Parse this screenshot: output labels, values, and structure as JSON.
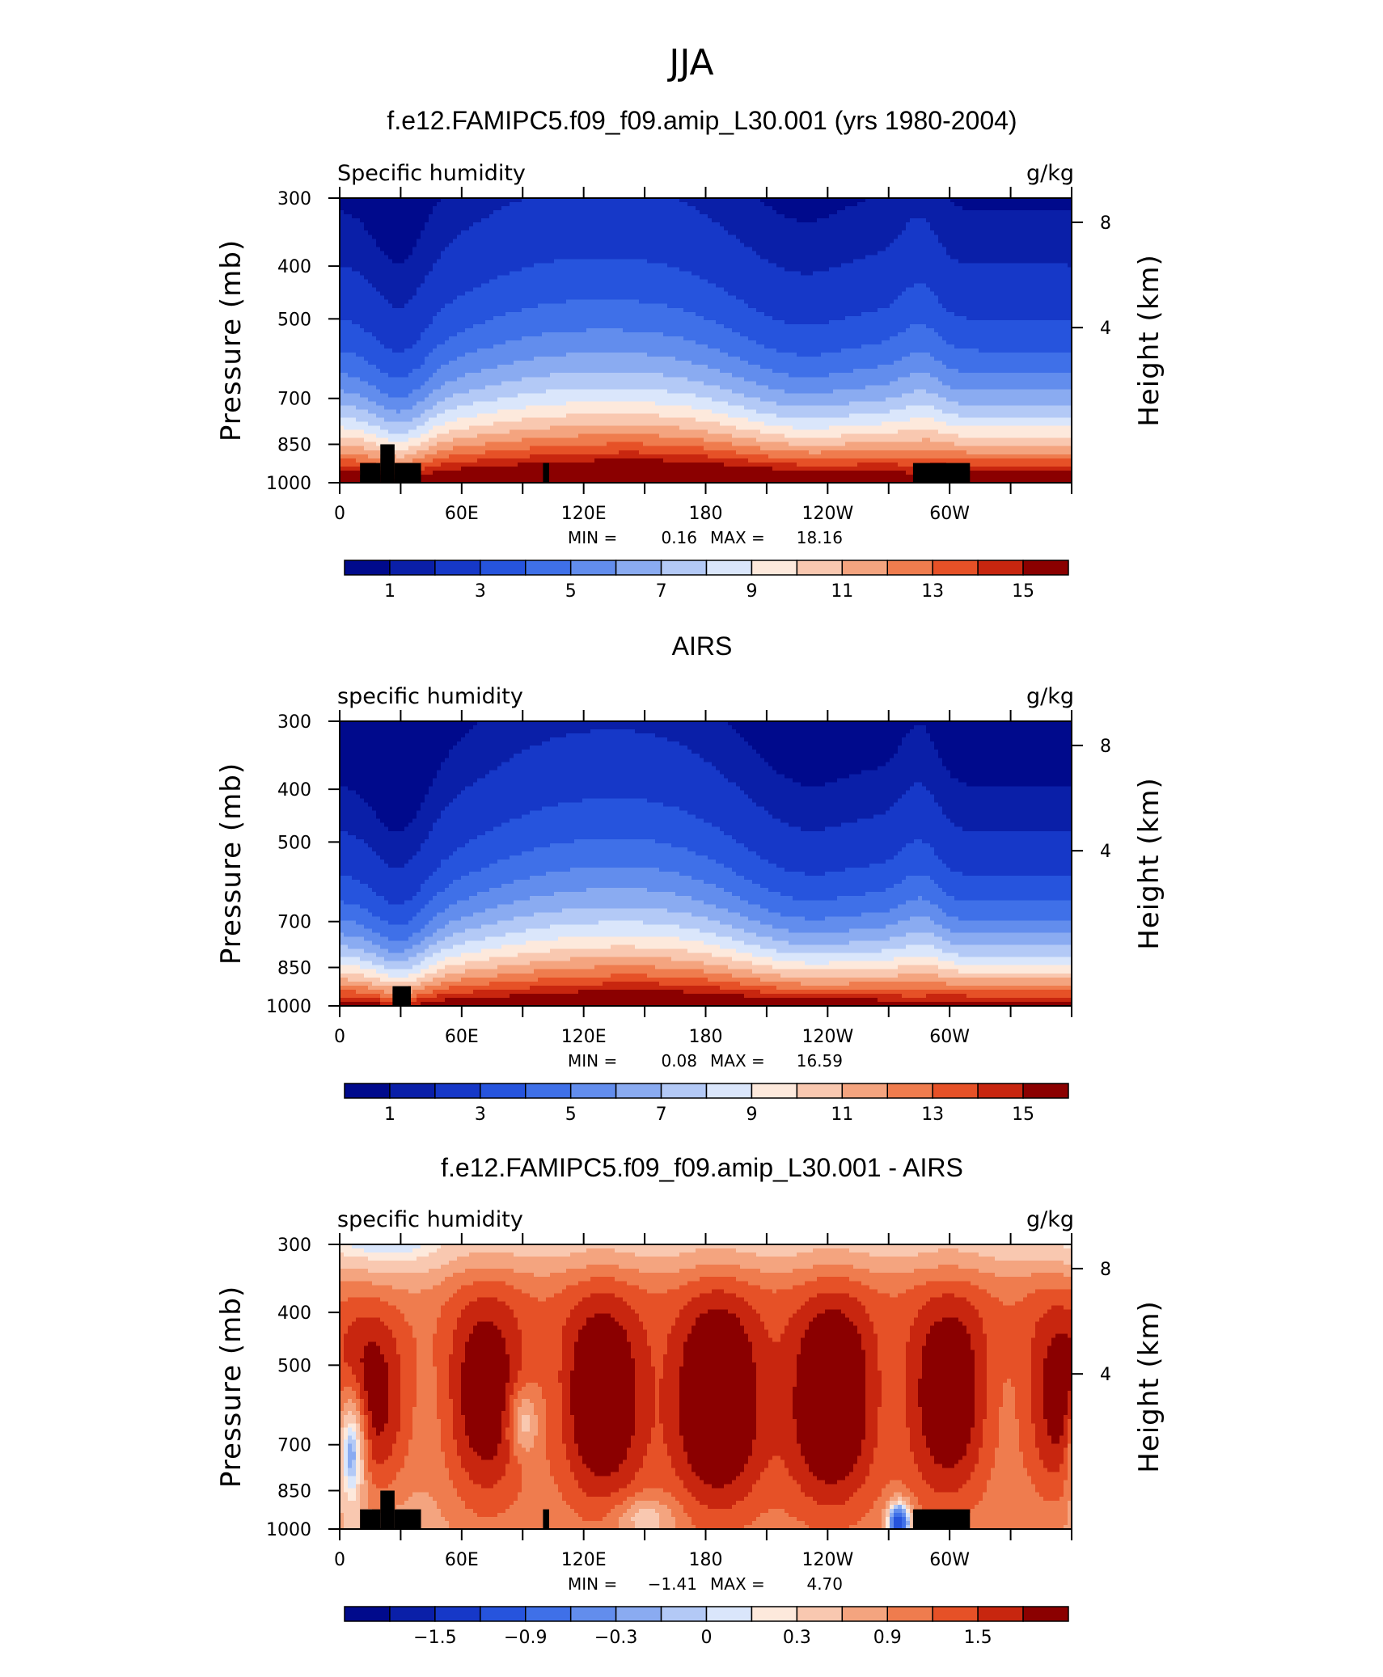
{
  "title": "JJA",
  "chart_data": [
    {
      "type": "heatmap",
      "title": "f.e12.FAMIPC5.f09_f09.amip_L30.001 (yrs 1980-2004)",
      "left_label": "Specific humidity",
      "units": "g/kg",
      "ylabel": "Pressure (mb)",
      "ylabel_right": "Height (km)",
      "y_ticks": [
        "300",
        "400",
        "500",
        "700",
        "850",
        "1000"
      ],
      "y_right_ticks": [
        "8",
        "4"
      ],
      "x_ticks": [
        "0",
        "60E",
        "120E",
        "180",
        "120W",
        "60W"
      ],
      "min_label": "MIN =",
      "min_value": "0.16",
      "max_label": "MAX =",
      "max_value": "18.16",
      "colorbar_ticks": [
        "1",
        "3",
        "5",
        "7",
        "9",
        "11",
        "13",
        "15"
      ],
      "field": "model",
      "colors": [
        "#000a8c",
        "#0a1fa8",
        "#1638c8",
        "#2654dd",
        "#3f70e8",
        "#628ded",
        "#8aabf1",
        "#b3c9f6",
        "#dae6fb",
        "#fde9dc",
        "#f9c8b0",
        "#f4a47f",
        "#ef7c4e",
        "#e65127",
        "#c8260f",
        "#8b0000"
      ]
    },
    {
      "type": "heatmap",
      "title": "AIRS",
      "left_label": "specific humidity",
      "units": "g/kg",
      "ylabel": "Pressure (mb)",
      "ylabel_right": "Height (km)",
      "y_ticks": [
        "300",
        "400",
        "500",
        "700",
        "850",
        "1000"
      ],
      "y_right_ticks": [
        "8",
        "4"
      ],
      "x_ticks": [
        "0",
        "60E",
        "120E",
        "180",
        "120W",
        "60W"
      ],
      "min_label": "MIN =",
      "min_value": "0.08",
      "max_label": "MAX =",
      "max_value": "16.59",
      "colorbar_ticks": [
        "1",
        "3",
        "5",
        "7",
        "9",
        "11",
        "13",
        "15"
      ],
      "field": "obs",
      "colors": [
        "#000a8c",
        "#0a1fa8",
        "#1638c8",
        "#2654dd",
        "#3f70e8",
        "#628ded",
        "#8aabf1",
        "#b3c9f6",
        "#dae6fb",
        "#fde9dc",
        "#f9c8b0",
        "#f4a47f",
        "#ef7c4e",
        "#e65127",
        "#c8260f",
        "#8b0000"
      ]
    },
    {
      "type": "heatmap",
      "title": "f.e12.FAMIPC5.f09_f09.amip_L30.001 - AIRS",
      "left_label": "specific humidity",
      "units": "g/kg",
      "ylabel": "Pressure (mb)",
      "ylabel_right": "Height (km)",
      "y_ticks": [
        "300",
        "400",
        "500",
        "700",
        "850",
        "1000"
      ],
      "y_right_ticks": [
        "8",
        "4"
      ],
      "x_ticks": [
        "0",
        "60E",
        "120E",
        "180",
        "120W",
        "60W"
      ],
      "min_label": "MIN =",
      "min_value": "−1.41",
      "max_label": "MAX =",
      "max_value": "4.70",
      "colorbar_ticks": [
        "−1.5",
        "−0.9",
        "−0.3",
        "0",
        "0.3",
        "0.9",
        "1.5"
      ],
      "field": "diff",
      "colors": [
        "#000a8c",
        "#0a1fa8",
        "#1638c8",
        "#2654dd",
        "#3f70e8",
        "#628ded",
        "#8aabf1",
        "#b3c9f6",
        "#dae6fb",
        "#fde9dc",
        "#f9c8b0",
        "#f4a47f",
        "#ef7c4e",
        "#e65127",
        "#c8260f",
        "#8b0000"
      ]
    }
  ]
}
